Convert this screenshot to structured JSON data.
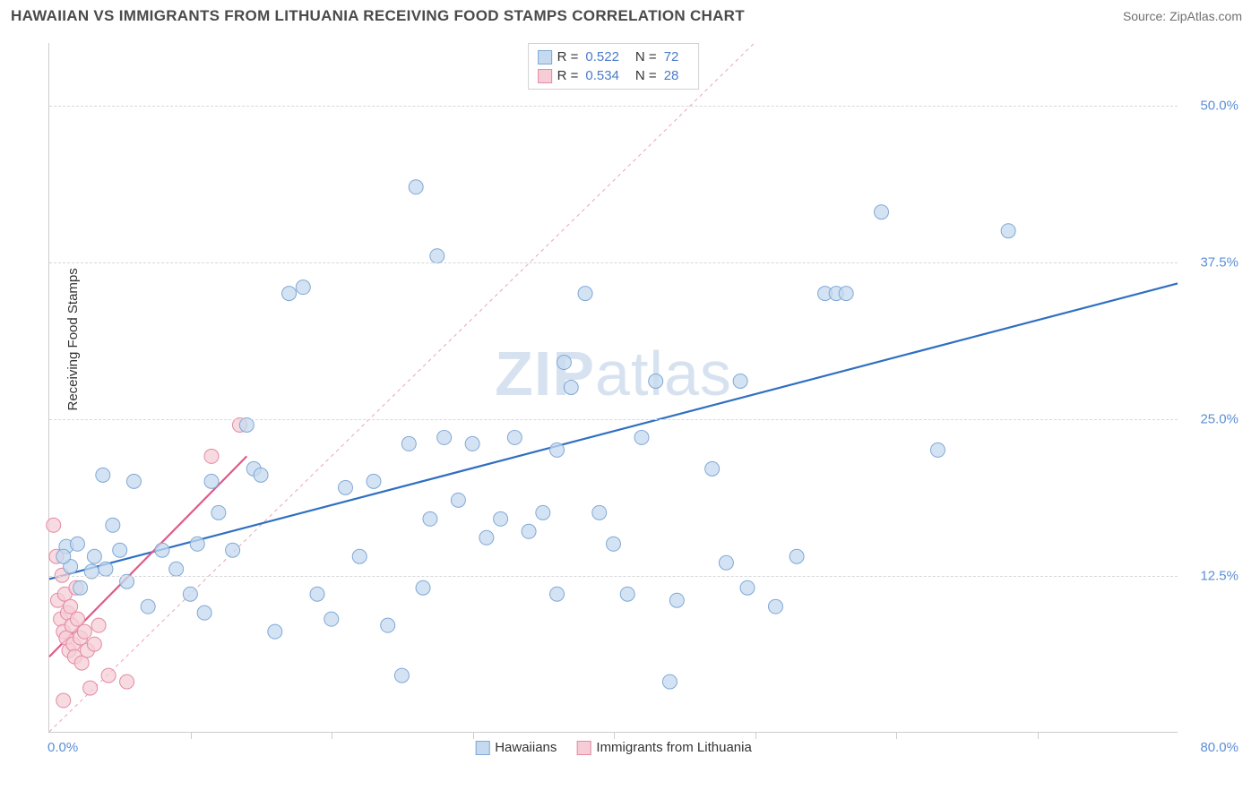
{
  "header": {
    "title": "HAWAIIAN VS IMMIGRANTS FROM LITHUANIA RECEIVING FOOD STAMPS CORRELATION CHART",
    "source": "Source: ZipAtlas.com"
  },
  "chart": {
    "type": "scatter",
    "y_axis_label": "Receiving Food Stamps",
    "watermark": "ZIPatlas",
    "xlim": [
      0,
      80
    ],
    "ylim": [
      0,
      55
    ],
    "x_ticks_minor_step": 10,
    "y_grid": [
      12.5,
      25.0,
      37.5,
      50.0
    ],
    "y_tick_labels": [
      "12.5%",
      "25.0%",
      "37.5%",
      "50.0%"
    ],
    "x_tick_left": "0.0%",
    "x_tick_right": "80.0%",
    "background_color": "#ffffff",
    "grid_color": "#d8d8d8",
    "axis_color": "#cccccc",
    "tick_label_color": "#5b8fd6",
    "series": [
      {
        "name": "Hawaiians",
        "marker_fill": "#c5d9ef",
        "marker_stroke": "#7fa8d6",
        "marker_radius": 8,
        "marker_opacity": 0.75,
        "line_color": "#2f6fc1",
        "line_width": 2.2,
        "trend_p1": [
          0,
          12.2
        ],
        "trend_p2": [
          80,
          35.8
        ],
        "stats": {
          "R": "0.522",
          "N": "72"
        },
        "points": [
          [
            1.2,
            14.8
          ],
          [
            1.5,
            13.2
          ],
          [
            2.0,
            15.0
          ],
          [
            2.2,
            11.5
          ],
          [
            3.0,
            12.8
          ],
          [
            3.2,
            14.0
          ],
          [
            3.8,
            20.5
          ],
          [
            4.0,
            13.0
          ],
          [
            4.5,
            16.5
          ],
          [
            5.0,
            14.5
          ],
          [
            5.5,
            12.0
          ],
          [
            6.0,
            20.0
          ],
          [
            7.0,
            10.0
          ],
          [
            8.0,
            14.5
          ],
          [
            9.0,
            13.0
          ],
          [
            10.0,
            11.0
          ],
          [
            10.5,
            15.0
          ],
          [
            11.0,
            9.5
          ],
          [
            11.5,
            20.0
          ],
          [
            12.0,
            17.5
          ],
          [
            13.0,
            14.5
          ],
          [
            14.0,
            24.5
          ],
          [
            14.5,
            21.0
          ],
          [
            15.0,
            20.5
          ],
          [
            16.0,
            8.0
          ],
          [
            17.0,
            35.0
          ],
          [
            18.0,
            35.5
          ],
          [
            19.0,
            11.0
          ],
          [
            20.0,
            9.0
          ],
          [
            21.0,
            19.5
          ],
          [
            22.0,
            14.0
          ],
          [
            23.0,
            20.0
          ],
          [
            24.0,
            8.5
          ],
          [
            25.0,
            4.5
          ],
          [
            25.5,
            23.0
          ],
          [
            26.0,
            43.5
          ],
          [
            26.5,
            11.5
          ],
          [
            27.0,
            17.0
          ],
          [
            27.5,
            38.0
          ],
          [
            28.0,
            23.5
          ],
          [
            29.0,
            18.5
          ],
          [
            30.0,
            23.0
          ],
          [
            31.0,
            15.5
          ],
          [
            32.0,
            17.0
          ],
          [
            33.0,
            23.5
          ],
          [
            34.0,
            16.0
          ],
          [
            35.0,
            17.5
          ],
          [
            36.0,
            11.0
          ],
          [
            36.5,
            29.5
          ],
          [
            37.0,
            27.5
          ],
          [
            38.0,
            35.0
          ],
          [
            39.0,
            17.5
          ],
          [
            40.0,
            15.0
          ],
          [
            41.0,
            11.0
          ],
          [
            42.0,
            23.5
          ],
          [
            43.0,
            28.0
          ],
          [
            44.0,
            4.0
          ],
          [
            44.5,
            10.5
          ],
          [
            47.0,
            21.0
          ],
          [
            48.0,
            13.5
          ],
          [
            49.0,
            28.0
          ],
          [
            49.5,
            11.5
          ],
          [
            53.0,
            14.0
          ],
          [
            55.0,
            35.0
          ],
          [
            55.8,
            35.0
          ],
          [
            56.5,
            35.0
          ],
          [
            59.0,
            41.5
          ],
          [
            63.0,
            22.5
          ],
          [
            68.0,
            40.0
          ],
          [
            51.5,
            10.0
          ],
          [
            36.0,
            22.5
          ],
          [
            1.0,
            14.0
          ]
        ]
      },
      {
        "name": "Immigrants from Lithuania",
        "marker_fill": "#f6cdd7",
        "marker_stroke": "#e48aa4",
        "marker_radius": 8,
        "marker_opacity": 0.75,
        "line_color": "#e05a8a",
        "line_width": 2.2,
        "trend_p1": [
          0,
          6.0
        ],
        "trend_p2": [
          14,
          22.0
        ],
        "stats": {
          "R": "0.534",
          "N": "28"
        },
        "points": [
          [
            0.3,
            16.5
          ],
          [
            0.5,
            14.0
          ],
          [
            0.6,
            10.5
          ],
          [
            0.8,
            9.0
          ],
          [
            0.9,
            12.5
          ],
          [
            1.0,
            8.0
          ],
          [
            1.1,
            11.0
          ],
          [
            1.2,
            7.5
          ],
          [
            1.3,
            9.5
          ],
          [
            1.4,
            6.5
          ],
          [
            1.5,
            10.0
          ],
          [
            1.6,
            8.5
          ],
          [
            1.7,
            7.0
          ],
          [
            1.8,
            6.0
          ],
          [
            1.9,
            11.5
          ],
          [
            2.0,
            9.0
          ],
          [
            2.2,
            7.5
          ],
          [
            2.3,
            5.5
          ],
          [
            2.5,
            8.0
          ],
          [
            2.7,
            6.5
          ],
          [
            2.9,
            3.5
          ],
          [
            3.2,
            7.0
          ],
          [
            3.5,
            8.5
          ],
          [
            4.2,
            4.5
          ],
          [
            5.5,
            4.0
          ],
          [
            1.0,
            2.5
          ],
          [
            11.5,
            22.0
          ],
          [
            13.5,
            24.5
          ]
        ]
      }
    ],
    "reference_line": {
      "color": "#e9a4b8",
      "dash": "4 4",
      "width": 1,
      "p1": [
        0,
        0
      ],
      "p2": [
        50,
        55
      ]
    },
    "legend_bottom": [
      {
        "label": "Hawaiians",
        "fill": "#c5d9ef",
        "stroke": "#7fa8d6"
      },
      {
        "label": "Immigrants from Lithuania",
        "fill": "#f6cdd7",
        "stroke": "#e48aa4"
      }
    ]
  }
}
